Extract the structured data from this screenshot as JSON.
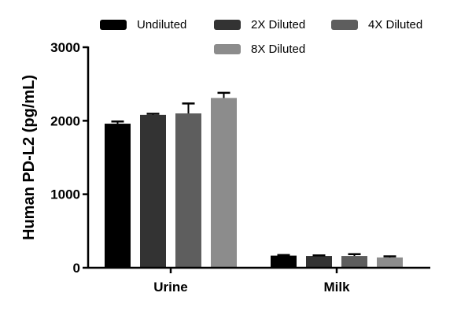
{
  "chart_data": {
    "type": "bar",
    "categories": [
      "Urine",
      "Milk"
    ],
    "ylabel": "Human PD-L2 (pg/mL)",
    "ylim": [
      0,
      3000
    ],
    "yticks": [
      0,
      1000,
      2000,
      3000
    ],
    "legend_position": "top",
    "error_bars": true,
    "series": [
      {
        "name": "Undiluted",
        "color": "#000000",
        "values": [
          1960,
          165
        ],
        "errors": [
          30,
          8
        ]
      },
      {
        "name": "2X Diluted",
        "color": "#333333",
        "values": [
          2080,
          160
        ],
        "errors": [
          15,
          8
        ]
      },
      {
        "name": "4X Diluted",
        "color": "#5e5e5e",
        "values": [
          2100,
          160
        ],
        "errors": [
          135,
          25
        ]
      },
      {
        "name": "8X Diluted",
        "color": "#8c8c8c",
        "values": [
          2310,
          140
        ],
        "errors": [
          70,
          15
        ]
      }
    ]
  }
}
